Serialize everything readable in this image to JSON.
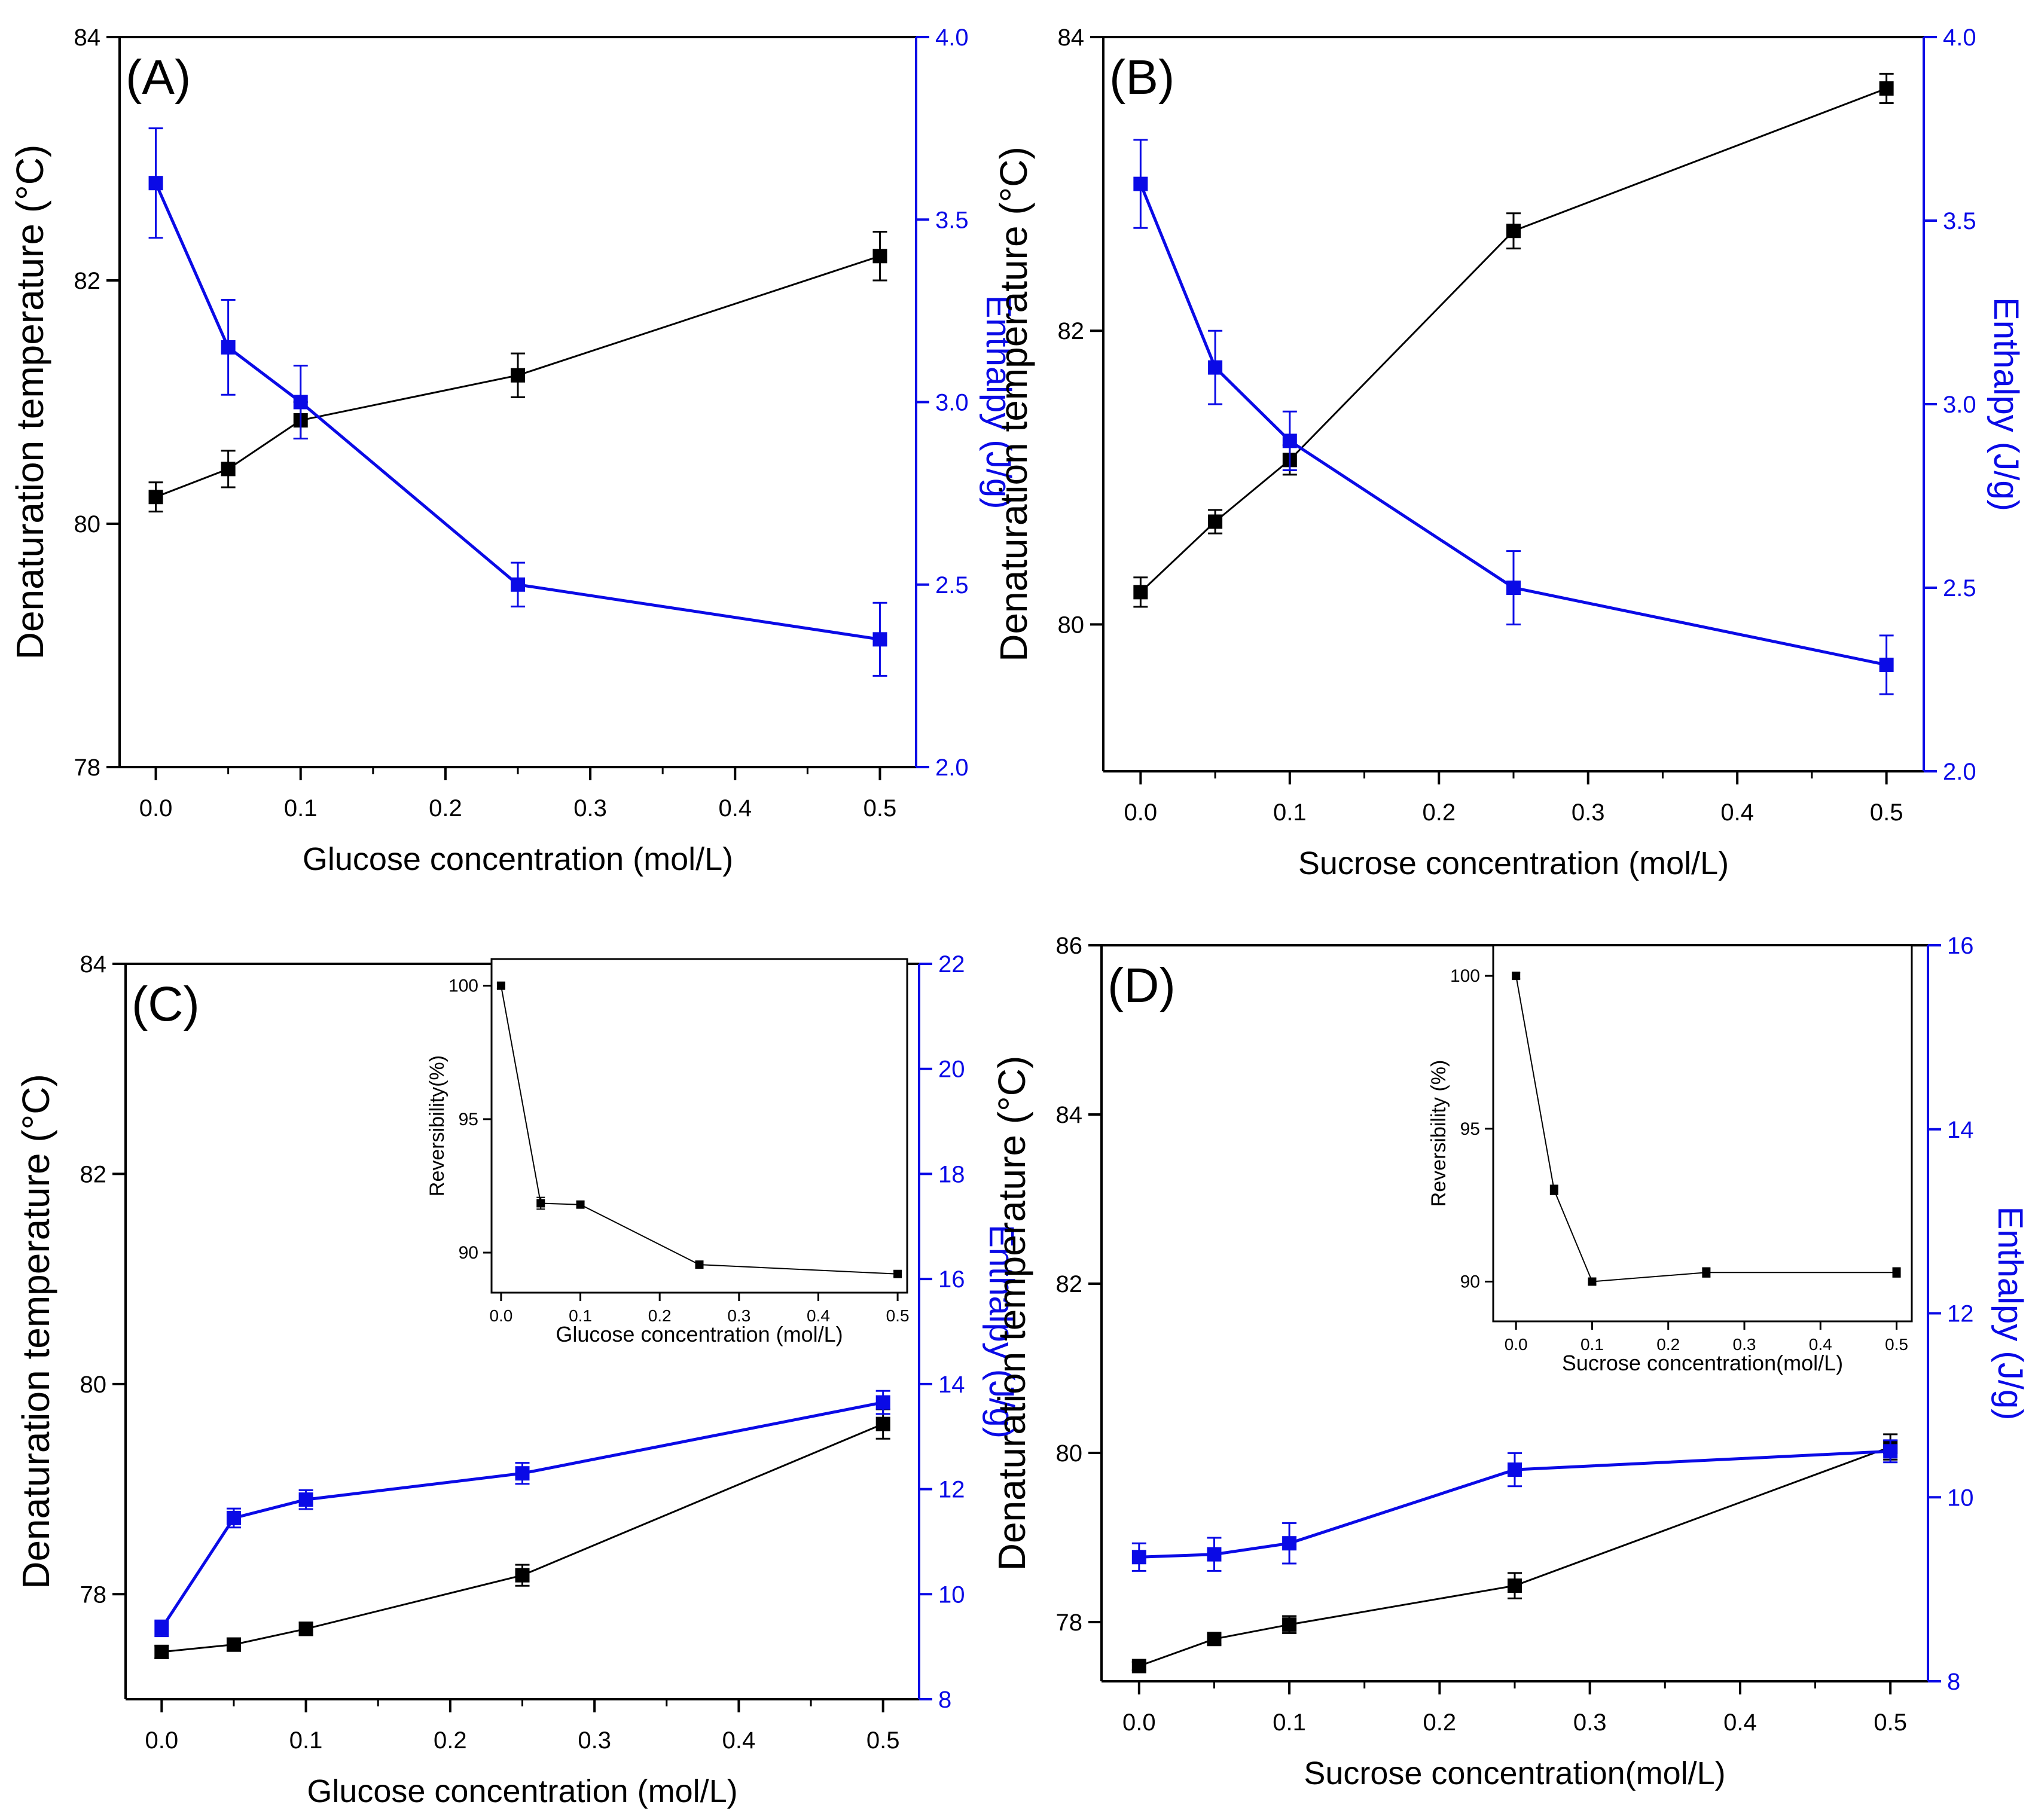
{
  "colors": {
    "temperature": "#000000",
    "enthalpy": "#0a0ae6",
    "axis": "#000000"
  },
  "chart_data": [
    {
      "type": "line",
      "panel_label": "(A)",
      "xlabel": "Glucose concentration (mol/L)",
      "ylabel": "Denaturation temperature (°C)",
      "y2label": "Enthalpy (J/g)",
      "xlim": [
        -0.025,
        0.525
      ],
      "ylim": [
        78,
        84
      ],
      "y2lim": [
        2.0,
        4.0
      ],
      "xticks": [
        "0.0",
        "0.1",
        "0.2",
        "0.3",
        "0.4",
        "0.5"
      ],
      "yticks": [
        "78",
        "80",
        "82",
        "84"
      ],
      "y2ticks": [
        "2.0",
        "2.5",
        "3.0",
        "3.5",
        "4.0"
      ],
      "x": [
        0,
        0.05,
        0.1,
        0.25,
        0.5
      ],
      "series": [
        {
          "name": "Denaturation temperature",
          "axis": "left",
          "values": [
            80.22,
            80.45,
            80.85,
            81.22,
            82.2
          ],
          "errors": [
            0.12,
            0.15,
            0.15,
            0.18,
            0.2
          ]
        },
        {
          "name": "Enthalpy",
          "axis": "right",
          "values": [
            3.6,
            3.15,
            3.0,
            2.5,
            2.35
          ],
          "errors": [
            0.15,
            0.13,
            0.1,
            0.06,
            0.1
          ]
        }
      ]
    },
    {
      "type": "line",
      "panel_label": "(B)",
      "xlabel": "Sucrose concentration (mol/L)",
      "ylabel": "Denaturation temperature (°C)",
      "y2label": "Enthalpy (J/g)",
      "xlim": [
        -0.025,
        0.525
      ],
      "ylim": [
        79,
        84
      ],
      "y2lim": [
        2.0,
        4.0
      ],
      "xticks": [
        "0.0",
        "0.1",
        "0.2",
        "0.3",
        "0.4",
        "0.5"
      ],
      "yticks": [
        "80",
        "82",
        "84"
      ],
      "y2ticks": [
        "2.0",
        "2.5",
        "3.0",
        "3.5",
        "4.0"
      ],
      "x": [
        0,
        0.05,
        0.1,
        0.25,
        0.5
      ],
      "series": [
        {
          "name": "Denaturation temperature",
          "axis": "left",
          "values": [
            80.22,
            80.7,
            81.12,
            82.68,
            83.65
          ],
          "errors": [
            0.1,
            0.08,
            0.1,
            0.12,
            0.1
          ]
        },
        {
          "name": "Enthalpy",
          "axis": "right",
          "values": [
            3.6,
            3.1,
            2.9,
            2.5,
            2.29
          ],
          "errors": [
            0.12,
            0.1,
            0.08,
            0.1,
            0.08
          ]
        }
      ]
    },
    {
      "type": "line",
      "panel_label": "(C)",
      "xlabel": "Glucose concentration (mol/L)",
      "ylabel": "Denaturation temperature (°C)",
      "y2label": "Enthalpy (J/g)",
      "xlim": [
        -0.025,
        0.525
      ],
      "ylim": [
        77,
        84
      ],
      "y2lim": [
        8,
        22
      ],
      "xticks": [
        "0.0",
        "0.1",
        "0.2",
        "0.3",
        "0.4",
        "0.5"
      ],
      "yticks": [
        "78",
        "80",
        "82",
        "84"
      ],
      "y2ticks": [
        "8",
        "10",
        "12",
        "14",
        "16",
        "18",
        "20",
        "22"
      ],
      "x": [
        0,
        0.05,
        0.1,
        0.25,
        0.5
      ],
      "series": [
        {
          "name": "Denaturation temperature",
          "axis": "left",
          "values": [
            77.45,
            77.52,
            77.67,
            78.18,
            79.62
          ],
          "errors": [
            0.06,
            0.06,
            0.06,
            0.1,
            0.14
          ]
        },
        {
          "name": "Enthalpy",
          "axis": "right",
          "values": [
            9.35,
            11.45,
            11.8,
            12.3,
            13.65
          ],
          "errors": [
            0.15,
            0.18,
            0.18,
            0.2,
            0.22
          ]
        }
      ],
      "inset": {
        "xlabel": "Glucose concentration (mol/L)",
        "ylabel": "Reversibility(%)",
        "xlim": [
          -0.012,
          0.512
        ],
        "ylim": [
          88.5,
          101
        ],
        "xticks": [
          "0.0",
          "0.1",
          "0.2",
          "0.3",
          "0.4",
          "0.5"
        ],
        "yticks": [
          "90",
          "95",
          "100"
        ],
        "x": [
          0,
          0.05,
          0.1,
          0.25,
          0.5
        ],
        "values": [
          100.0,
          91.85,
          91.8,
          89.55,
          89.2
        ],
        "errors": [
          0.1,
          0.22,
          0.12,
          0.08,
          0.1
        ]
      }
    },
    {
      "type": "line",
      "panel_label": "(D)",
      "xlabel": "Sucrose concentration(mol/L)",
      "ylabel": "Denaturation temperature (°C)",
      "y2label": "Enthalpy (J/g)",
      "xlim": [
        -0.025,
        0.525
      ],
      "ylim": [
        77.3,
        86
      ],
      "y2lim": [
        8,
        16
      ],
      "xticks": [
        "0.0",
        "0.1",
        "0.2",
        "0.3",
        "0.4",
        "0.5"
      ],
      "yticks": [
        "78",
        "80",
        "82",
        "84",
        "86"
      ],
      "y2ticks": [
        "8",
        "10",
        "12",
        "14",
        "16"
      ],
      "x": [
        0,
        0.05,
        0.1,
        0.25,
        0.5
      ],
      "series": [
        {
          "name": "Denaturation temperature",
          "axis": "left",
          "values": [
            77.48,
            77.8,
            77.97,
            78.43,
            80.07
          ],
          "errors": [
            0.05,
            0.06,
            0.1,
            0.15,
            0.15
          ]
        },
        {
          "name": "Enthalpy",
          "axis": "right",
          "values": [
            9.35,
            9.38,
            9.5,
            10.3,
            10.5
          ],
          "errors": [
            0.15,
            0.18,
            0.22,
            0.18,
            0.12
          ]
        }
      ],
      "inset": {
        "xlabel": "Sucrose concentration(mol/L)",
        "ylabel": "Reversibility (%)",
        "xlim": [
          -0.03,
          0.52
        ],
        "ylim": [
          88.7,
          101
        ],
        "xticks": [
          "0.0",
          "0.1",
          "0.2",
          "0.3",
          "0.4",
          "0.5"
        ],
        "yticks": [
          "90",
          "95",
          "100"
        ],
        "x": [
          0,
          0.05,
          0.1,
          0.25,
          0.5
        ],
        "values": [
          100.0,
          93.0,
          90.0,
          90.3,
          90.3
        ],
        "errors": [
          0.1,
          0.15,
          0.1,
          0.15,
          0.15
        ]
      }
    }
  ]
}
